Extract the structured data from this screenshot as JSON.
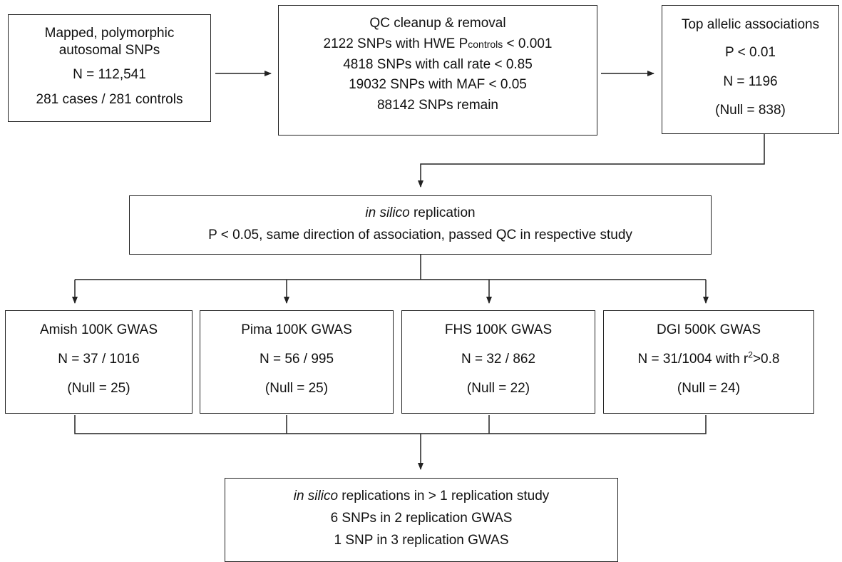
{
  "box_input": {
    "l1": "Mapped, polymorphic",
    "l2": "autosomal SNPs",
    "l3": "N = 112,541",
    "l4": "281 cases / 281 controls"
  },
  "box_qc": {
    "l1": "QC cleanup & removal",
    "l2_pre": "2122 SNPs with HWE P",
    "l2_sub": "controls",
    "l2_post": " < 0.001",
    "l3": "4818 SNPs with call rate < 0.85",
    "l4": "19032 SNPs with MAF < 0.05",
    "l5": "88142 SNPs remain"
  },
  "box_top": {
    "l1": "Top allelic associations",
    "l2": "P < 0.01",
    "l3": "N = 1196",
    "l4": "(Null = 838)"
  },
  "box_insilico": {
    "l1_italic": "in silico",
    "l1_rest": " replication",
    "l2": "P < 0.05, same direction of association, passed QC in respective study"
  },
  "studies": [
    {
      "title": "Amish 100K GWAS",
      "n": "N = 37 / 1016",
      "null": "(Null = 25)"
    },
    {
      "title": "Pima 100K GWAS",
      "n": "N = 56 / 995",
      "null": "(Null = 25)"
    },
    {
      "title": "FHS 100K GWAS",
      "n": "N = 32 / 862",
      "null": "(Null = 22)"
    },
    {
      "title": "DGI 500K GWAS",
      "n_pre": "N = 31/1004 with r",
      "n_sup": "2",
      "n_post": ">0.8",
      "null": "(Null = 24)"
    }
  ],
  "box_final": {
    "l1_italic": "in silico",
    "l1_rest": " replications in > 1 replication study",
    "l2": "6 SNPs in 2 replication GWAS",
    "l3": "1 SNP in 3 replication GWAS"
  }
}
